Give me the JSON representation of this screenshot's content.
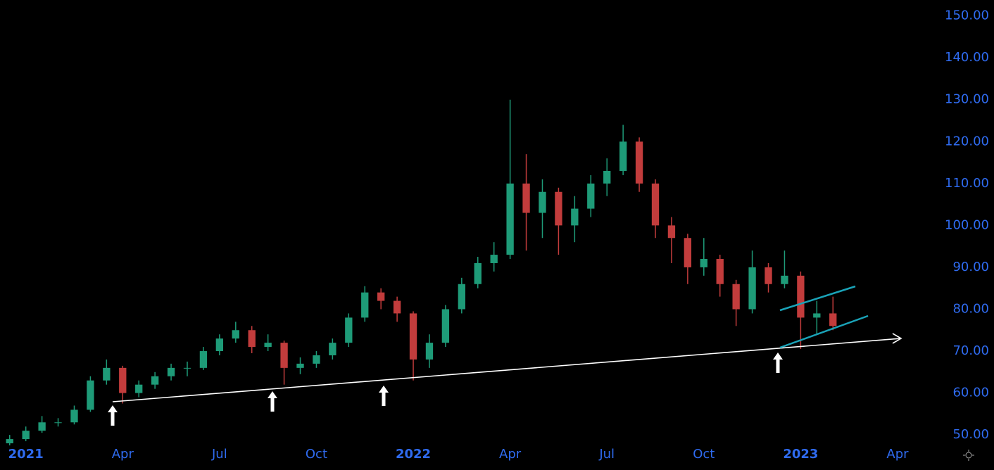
{
  "chart_data": {
    "type": "candlestick",
    "x": [
      -0.5,
      0,
      0.5,
      1,
      1.5,
      2,
      2.5,
      3,
      3.5,
      4,
      4.5,
      5,
      5.5,
      6,
      6.5,
      7,
      7.5,
      8,
      8.5,
      9,
      9.5,
      10,
      10.5,
      11,
      11.5,
      12,
      12.5,
      13,
      13.5,
      14,
      14.5,
      15,
      15.5,
      16,
      16.5,
      17,
      17.5,
      18,
      18.5,
      19,
      19.5,
      20,
      20.5,
      21,
      21.5,
      22,
      22.5,
      23,
      23.5,
      24,
      24.5,
      25
    ],
    "open": [
      48,
      49,
      51,
      53,
      53,
      56,
      63,
      66,
      60,
      62,
      64,
      66,
      66,
      70,
      73,
      75,
      71,
      72,
      66,
      67,
      69,
      72,
      78,
      84,
      82,
      79,
      68,
      72,
      80,
      86,
      91,
      93,
      110,
      103,
      108,
      100,
      104,
      110,
      113,
      120,
      110,
      100,
      97,
      90,
      92,
      86,
      80,
      90,
      86,
      88,
      78,
      79
    ],
    "high": [
      50,
      52,
      54.5,
      54,
      57,
      64,
      68,
      66.5,
      63,
      65,
      67,
      67.5,
      71,
      74,
      77,
      76,
      74,
      72.5,
      68.5,
      70,
      73,
      79,
      85.5,
      85,
      83,
      79.5,
      74,
      81,
      87.5,
      92.5,
      96,
      130,
      117,
      111,
      109,
      107,
      112,
      116,
      124,
      121,
      111,
      102,
      98,
      97,
      93,
      87,
      94,
      91,
      94,
      89,
      82,
      83
    ],
    "low": [
      47.5,
      48.5,
      50.5,
      52,
      52.5,
      55.5,
      62,
      57.5,
      59,
      61,
      63,
      64,
      65.5,
      69,
      72,
      69.5,
      70,
      62,
      64.5,
      66,
      68,
      71,
      77,
      80,
      77,
      63,
      66,
      71,
      79,
      85,
      89,
      92,
      94,
      97,
      93,
      96,
      102,
      107,
      112,
      108,
      97,
      91,
      86,
      88,
      83,
      76,
      79,
      84,
      85,
      70.5,
      74,
      75
    ],
    "close": [
      49,
      51,
      53,
      53,
      56,
      63,
      66,
      60,
      62,
      64,
      66,
      66,
      70,
      73,
      75,
      71,
      72,
      66,
      67,
      69,
      72,
      78,
      84,
      82,
      79,
      68,
      72,
      80,
      86,
      91,
      93,
      110,
      103,
      108,
      100,
      104,
      110,
      113,
      120,
      110,
      100,
      97,
      90,
      92,
      86,
      80,
      90,
      86,
      88,
      78,
      79,
      76
    ],
    "up_color": "#1e9b78",
    "down_color": "#c23c3c",
    "xlim": [
      -0.8,
      28.2
    ],
    "xticks": [
      {
        "value": 0,
        "label": "2021"
      },
      {
        "value": 3,
        "label": "Apr"
      },
      {
        "value": 6,
        "label": "Jul"
      },
      {
        "value": 9,
        "label": "Oct"
      },
      {
        "value": 12,
        "label": "2022"
      },
      {
        "value": 15,
        "label": "Apr"
      },
      {
        "value": 18,
        "label": "Jul"
      },
      {
        "value": 21,
        "label": "Oct"
      },
      {
        "value": 24,
        "label": "2023"
      },
      {
        "value": 27,
        "label": "Apr"
      }
    ],
    "ylim": [
      47,
      153.8
    ],
    "yticks": [
      {
        "value": 50,
        "label": "50.00"
      },
      {
        "value": 60,
        "label": "60.00"
      },
      {
        "value": 70,
        "label": "70.00"
      },
      {
        "value": 80,
        "label": "80.00"
      },
      {
        "value": 90,
        "label": "90.00"
      },
      {
        "value": 100,
        "label": "100.00"
      },
      {
        "value": 110,
        "label": "110.00"
      },
      {
        "value": 120,
        "label": "120.00"
      },
      {
        "value": 130,
        "label": "130.00"
      },
      {
        "value": 140,
        "label": "140.00"
      },
      {
        "value": 150,
        "label": "150.00"
      }
    ],
    "axis_color": "#2f6bf0"
  }
}
